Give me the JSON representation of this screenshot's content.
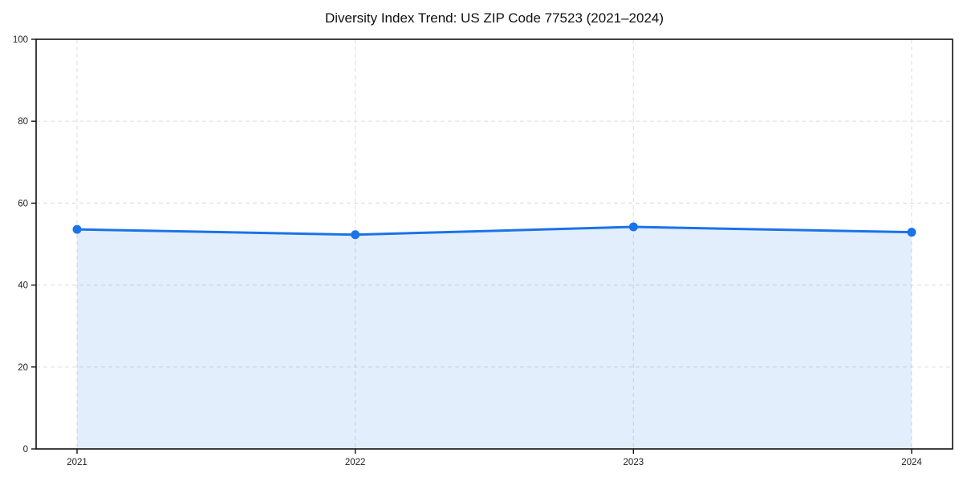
{
  "chart_data": {
    "type": "area",
    "title": "Diversity Index Trend: US ZIP Code 77523 (2021–2024)",
    "categories": [
      "2021",
      "2022",
      "2023",
      "2024"
    ],
    "values": [
      53.6,
      52.3,
      54.2,
      52.9
    ],
    "xlabel": "",
    "ylabel": "",
    "ylim": [
      0,
      100
    ],
    "yticks": [
      0,
      20,
      40,
      60,
      80,
      100
    ],
    "grid": "dashed-both-axes",
    "legend": "none",
    "marker": "circle",
    "colors": {
      "line": "#1a73e8",
      "marker": "#1a73e8",
      "fill": "rgba(26,115,232,0.12)",
      "grid": "#e2e2e2",
      "spine": "#111111",
      "tick_label": "#222222",
      "title": "#111111"
    }
  }
}
